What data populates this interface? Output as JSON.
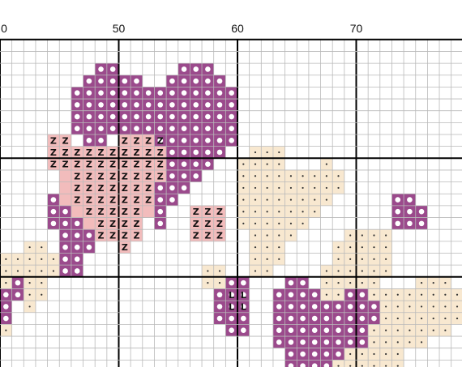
{
  "ruler": {
    "column_labels": [
      {
        "col": 40,
        "text": "0"
      },
      {
        "col": 50,
        "text": "50"
      },
      {
        "col": 60,
        "text": "60"
      },
      {
        "col": 70,
        "text": "70"
      }
    ]
  },
  "colors": {
    "purple": "#9B4A8C",
    "pink": "#F2BCBC",
    "cream": "#F8E8D0",
    "grid_minor": "#b9b9b9",
    "grid_major": "#000000",
    "symbol_dot": "#ffffff",
    "symbol_z": "#111111"
  },
  "symbols": {
    "pink": "Z",
    "brown": "L"
  },
  "pattern": {
    "purple": [
      [
        2,
        48,
        49
      ],
      [
        2,
        55,
        57
      ],
      [
        3,
        47,
        51
      ],
      [
        3,
        54,
        58
      ],
      [
        4,
        46,
        52
      ],
      [
        4,
        53,
        59
      ],
      [
        5,
        46,
        59
      ],
      [
        6,
        46,
        59
      ],
      [
        7,
        46,
        59
      ],
      [
        8,
        47,
        48
      ],
      [
        8,
        53,
        59
      ],
      [
        9,
        54,
        58
      ],
      [
        10,
        54,
        57
      ],
      [
        11,
        54,
        56
      ],
      [
        12,
        53,
        55
      ],
      [
        13,
        44,
        44
      ],
      [
        13,
        53,
        54
      ],
      [
        13,
        73,
        74
      ],
      [
        14,
        44,
        45
      ],
      [
        14,
        53,
        53
      ],
      [
        14,
        73,
        75
      ],
      [
        15,
        44,
        46
      ],
      [
        15,
        53,
        53
      ],
      [
        15,
        73,
        75
      ],
      [
        16,
        45,
        47
      ],
      [
        17,
        45,
        47
      ],
      [
        18,
        45,
        46
      ],
      [
        19,
        45,
        46
      ],
      [
        20,
        41,
        41
      ],
      [
        20,
        59,
        60
      ],
      [
        20,
        64,
        65
      ],
      [
        21,
        40,
        41
      ],
      [
        21,
        58,
        60
      ],
      [
        21,
        63,
        66
      ],
      [
        21,
        69,
        70
      ],
      [
        22,
        40,
        40
      ],
      [
        22,
        58,
        60
      ],
      [
        22,
        63,
        67
      ],
      [
        22,
        68,
        71
      ],
      [
        23,
        40,
        40
      ],
      [
        23,
        58,
        60
      ],
      [
        23,
        63,
        71
      ],
      [
        24,
        59,
        60
      ],
      [
        24,
        63,
        70
      ],
      [
        25,
        63,
        70
      ],
      [
        26,
        64,
        68
      ],
      [
        27,
        64,
        67
      ]
    ],
    "pink": [
      [
        8,
        44,
        45
      ],
      [
        8,
        50,
        53
      ],
      [
        9,
        44,
        53
      ],
      [
        10,
        44,
        53
      ],
      [
        11,
        45,
        53
      ],
      [
        12,
        45,
        52
      ],
      [
        13,
        45,
        52
      ],
      [
        14,
        46,
        52
      ],
      [
        14,
        56,
        58
      ],
      [
        15,
        47,
        51
      ],
      [
        15,
        56,
        58
      ],
      [
        16,
        48,
        51
      ],
      [
        16,
        56,
        58
      ],
      [
        17,
        50,
        50
      ]
    ],
    "pink_symbols": [
      [
        8,
        44,
        45
      ],
      [
        8,
        50,
        53
      ],
      [
        9,
        44,
        53
      ],
      [
        10,
        44,
        53
      ],
      [
        11,
        46,
        53
      ],
      [
        12,
        46,
        52
      ],
      [
        13,
        46,
        52
      ],
      [
        14,
        47,
        51
      ],
      [
        14,
        56,
        58
      ],
      [
        15,
        48,
        51
      ],
      [
        15,
        56,
        58
      ],
      [
        16,
        48,
        51
      ],
      [
        16,
        56,
        58
      ],
      [
        17,
        50,
        50
      ]
    ],
    "brown": [
      [
        21,
        59,
        60
      ],
      [
        22,
        59,
        60
      ]
    ],
    "cream": [
      [
        9,
        61,
        63
      ],
      [
        10,
        60,
        63
      ],
      [
        10,
        67,
        67
      ],
      [
        11,
        60,
        68
      ],
      [
        12,
        60,
        68
      ],
      [
        13,
        60,
        67
      ],
      [
        14,
        60,
        66
      ],
      [
        15,
        60,
        61
      ],
      [
        15,
        62,
        65
      ],
      [
        16,
        61,
        64
      ],
      [
        16,
        69,
        72
      ],
      [
        17,
        42,
        43
      ],
      [
        17,
        61,
        63
      ],
      [
        17,
        68,
        72
      ],
      [
        18,
        40,
        44
      ],
      [
        18,
        61,
        63
      ],
      [
        18,
        68,
        72
      ],
      [
        19,
        40,
        44
      ],
      [
        19,
        57,
        58
      ],
      [
        19,
        61,
        62
      ],
      [
        19,
        67,
        72
      ],
      [
        20,
        40,
        43
      ],
      [
        20,
        57,
        58
      ],
      [
        20,
        67,
        71
      ],
      [
        20,
        75,
        77
      ],
      [
        21,
        42,
        43
      ],
      [
        21,
        67,
        71
      ],
      [
        21,
        72,
        78
      ],
      [
        22,
        42,
        42
      ],
      [
        22,
        67,
        78
      ],
      [
        23,
        40,
        40
      ],
      [
        23,
        71,
        78
      ],
      [
        24,
        40,
        40
      ],
      [
        24,
        71,
        77
      ],
      [
        25,
        69,
        75
      ],
      [
        26,
        69,
        73
      ],
      [
        27,
        68,
        73
      ]
    ]
  }
}
